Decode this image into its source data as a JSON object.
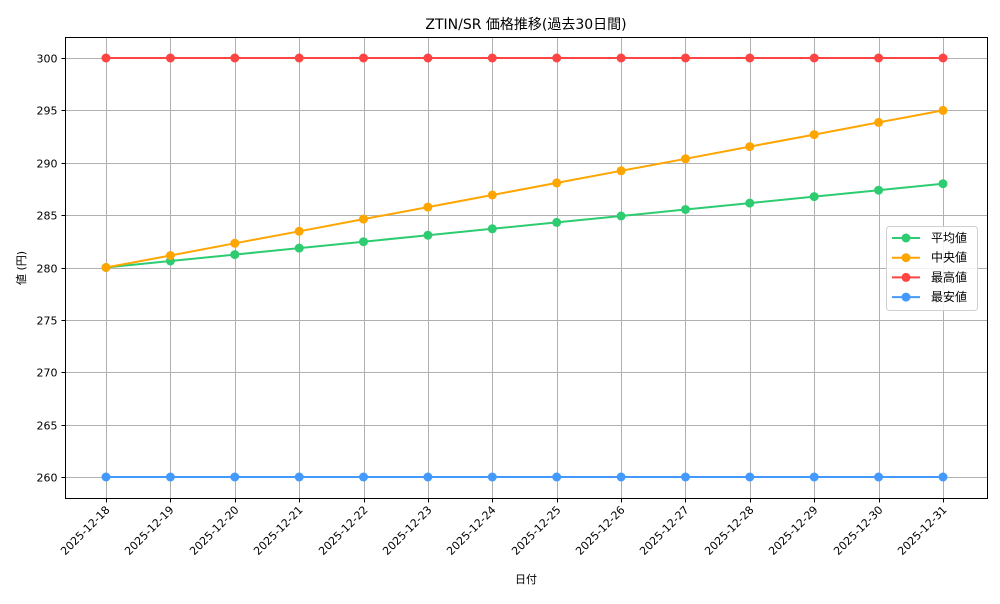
{
  "chart_data": {
    "type": "line",
    "title": "ZTIN/SR 価格推移(過去30日間)",
    "xlabel": "日付",
    "ylabel": "値 (円)",
    "ylim": [
      258,
      302
    ],
    "yticks": [
      260,
      265,
      270,
      275,
      280,
      285,
      290,
      295,
      300
    ],
    "grid": true,
    "legend_position": "center right",
    "categories": [
      "2025-12-18",
      "2025-12-19",
      "2025-12-20",
      "2025-12-21",
      "2025-12-22",
      "2025-12-23",
      "2025-12-24",
      "2025-12-25",
      "2025-12-26",
      "2025-12-27",
      "2025-12-28",
      "2025-12-29",
      "2025-12-30",
      "2025-12-31"
    ],
    "series": [
      {
        "name": "平均値",
        "color": "#2ecc71",
        "values": [
          280.0,
          280.62,
          281.23,
          281.85,
          282.46,
          283.08,
          283.69,
          284.31,
          284.92,
          285.54,
          286.15,
          286.77,
          287.38,
          288.0
        ]
      },
      {
        "name": "中央値",
        "color": "#ffa500",
        "values": [
          280.0,
          281.15,
          282.31,
          283.46,
          284.62,
          285.77,
          286.92,
          288.08,
          289.23,
          290.38,
          291.54,
          292.69,
          293.85,
          295.0
        ]
      },
      {
        "name": "最高値",
        "color": "#ff4444",
        "values": [
          300,
          300,
          300,
          300,
          300,
          300,
          300,
          300,
          300,
          300,
          300,
          300,
          300,
          300
        ]
      },
      {
        "name": "最安値",
        "color": "#4499ff",
        "values": [
          260,
          260,
          260,
          260,
          260,
          260,
          260,
          260,
          260,
          260,
          260,
          260,
          260,
          260
        ]
      }
    ]
  }
}
